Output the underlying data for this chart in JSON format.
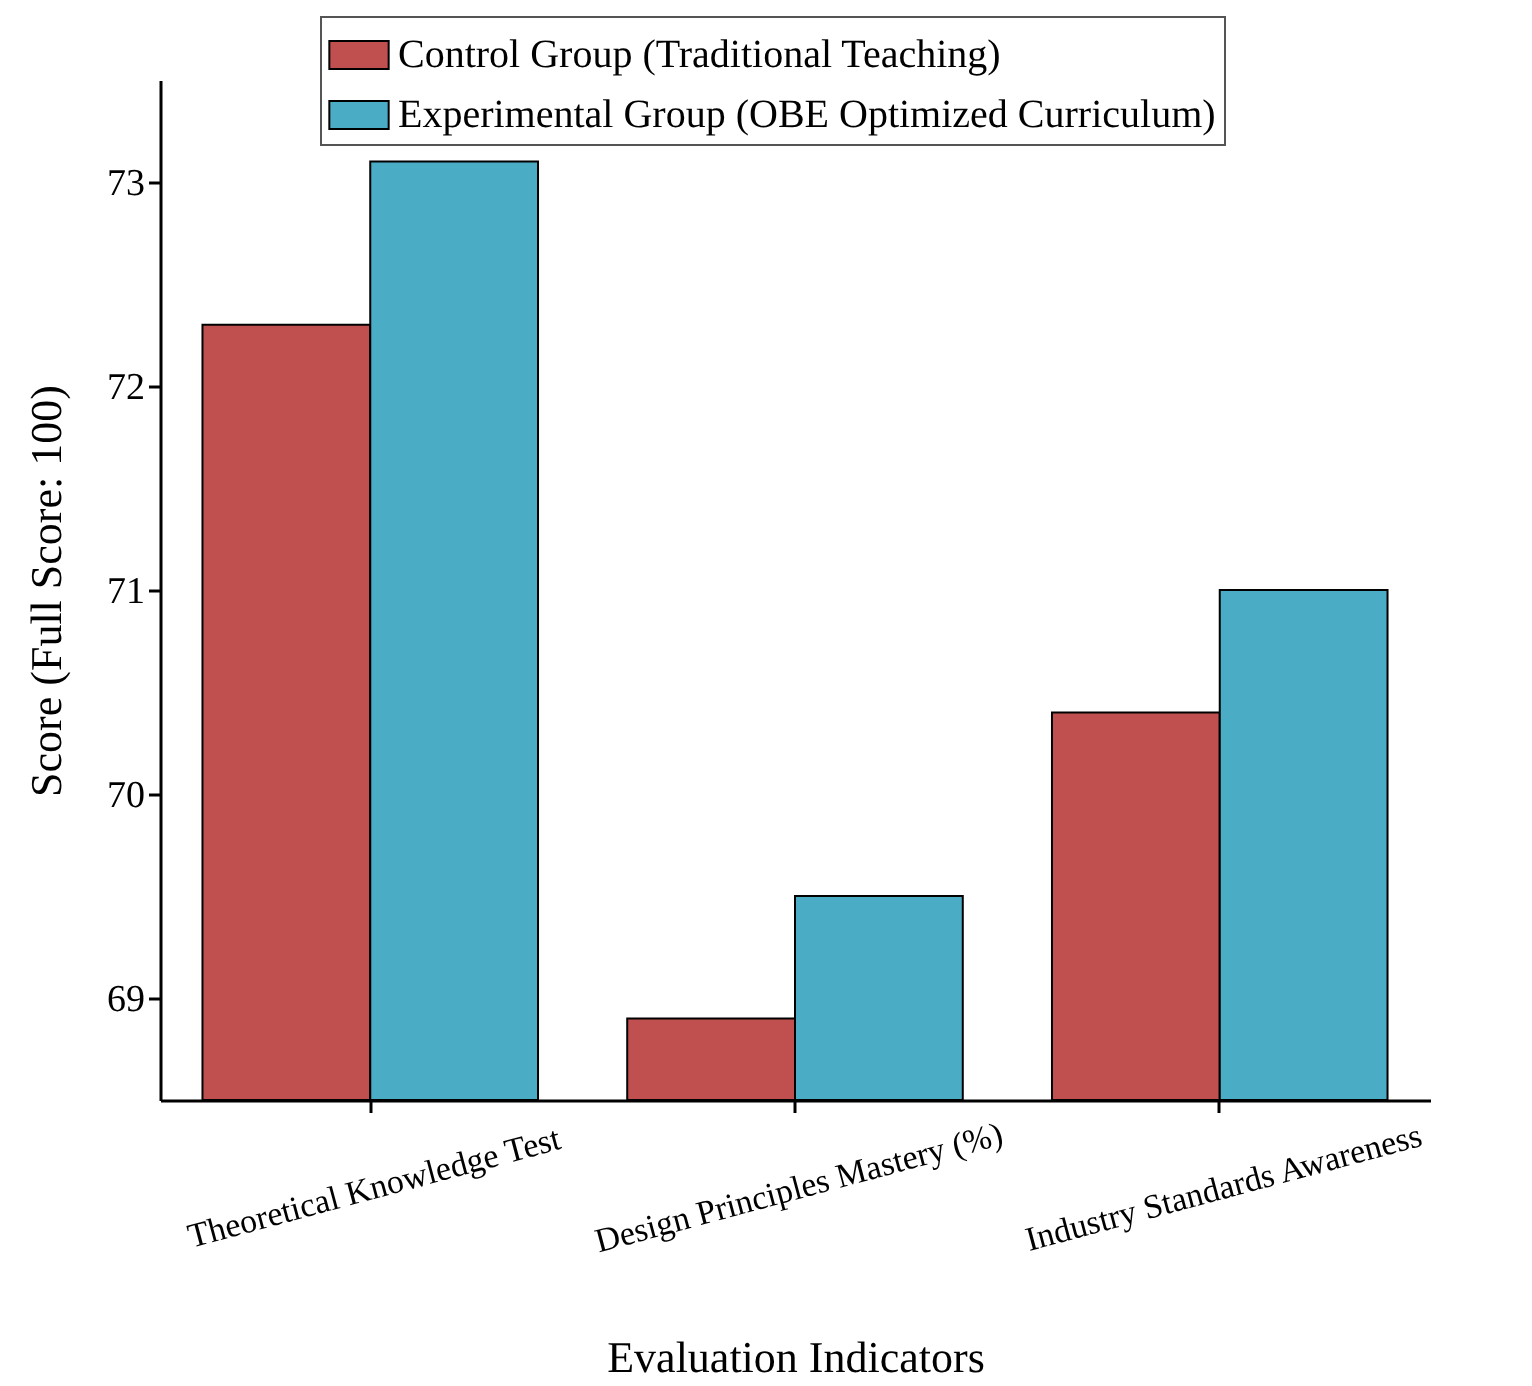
{
  "chart_data": {
    "type": "bar",
    "xlabel": "Evaluation Indicators",
    "ylabel": "Score (Full Score: 100)",
    "categories": [
      "Theoretical Knowledge Test",
      "Design Principles Mastery (%)",
      "Industry Standards Awareness"
    ],
    "series": [
      {
        "name": "Control Group (Traditional Teaching)",
        "color": "#c0504f",
        "values": [
          72.3,
          68.9,
          70.4
        ]
      },
      {
        "name": "Experimental Group (OBE Optimized Curriculum)",
        "color": "#4bacc6",
        "values": [
          73.1,
          69.5,
          71.0
        ]
      }
    ],
    "ylim": [
      68.5,
      73.5
    ],
    "yticks": [
      69,
      70,
      71,
      72,
      73
    ],
    "grid": false,
    "legend": "top"
  }
}
